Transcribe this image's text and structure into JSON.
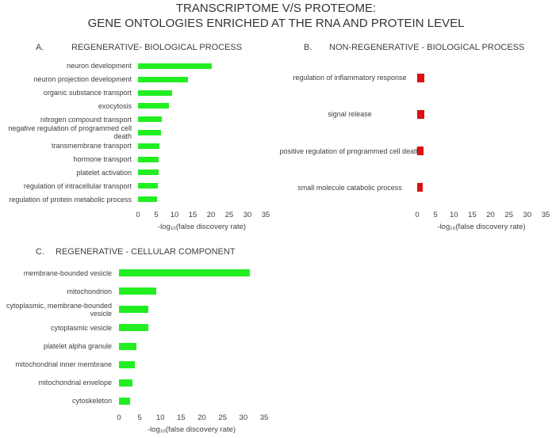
{
  "title": [
    "TRANSCRIPTOME V/S PROTEOME:",
    "GENE ONTOLOGIES ENRICHED AT THE RNA AND PROTEIN LEVEL"
  ],
  "chart_data": [
    {
      "type": "bar",
      "orientation": "horizontal",
      "panel": "A.",
      "title": "REGENERATIVE- BIOLOGICAL PROCESS",
      "categories": [
        "neuron development",
        "neuron projection development",
        "organic substance transport",
        "exocytosis",
        "nitrogen compound transport",
        "negative regulation of programmed cell death",
        "transmembrane transport",
        "hormone transport",
        "platelet activation",
        "regulation of intracellular transport",
        "regulation of protein metabolic process"
      ],
      "values": [
        20.2,
        13.7,
        9.3,
        8.5,
        6.5,
        6.3,
        5.9,
        5.6,
        5.6,
        5.4,
        5.2
      ],
      "color": "#22ee22",
      "xlim": [
        0,
        35
      ],
      "xticks": [
        0,
        5,
        10,
        15,
        20,
        25,
        30,
        35
      ],
      "xlabel": "-log₁₀(false discovery rate)"
    },
    {
      "type": "bar",
      "orientation": "horizontal",
      "panel": "B.",
      "title": "NON-REGENERATIVE - BIOLOGICAL PROCESS",
      "categories": [
        "regulation of inflammatory response",
        "signal release",
        "positive regulation of programmed cell death",
        "small molecule catabolic process"
      ],
      "values": [
        2,
        2,
        1.7,
        1.5
      ],
      "color": "#dd1111",
      "xlim": [
        0,
        35
      ],
      "xticks": [
        0,
        5,
        10,
        15,
        20,
        25,
        30,
        35
      ],
      "xlabel": "-log₁₀(false discovery rate)"
    },
    {
      "type": "bar",
      "orientation": "horizontal",
      "panel": "C.",
      "title": "REGENERATIVE - CELLULAR COMPONENT",
      "categories": [
        "membrane-bounded vesicle",
        "mitochondrion",
        "cytoplasmic, membrane-bounded vesicle",
        "cytoplasmic vesicle",
        "platelet alpha granule",
        "mitochondrial inner membrane",
        "mitochondrial envelope",
        "cytoskeleton"
      ],
      "values": [
        31.5,
        9,
        7.1,
        7.1,
        4.2,
        3.8,
        3.3,
        2.7
      ],
      "color": "#22ee22",
      "xlim": [
        0,
        35
      ],
      "xticks": [
        0,
        5,
        10,
        15,
        20,
        25,
        30,
        35
      ],
      "xlabel": "-log₁₀(false discovery rate)"
    }
  ]
}
